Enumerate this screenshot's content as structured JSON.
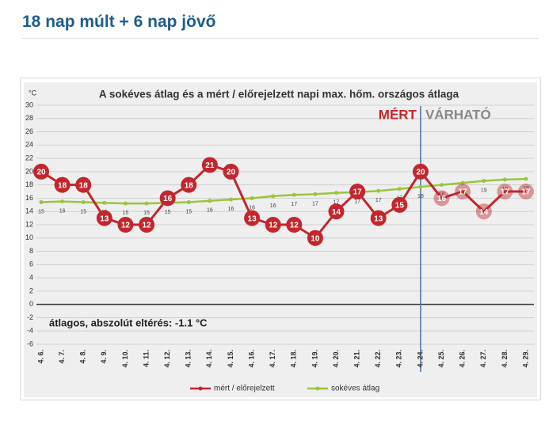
{
  "page_title": "18 nap múlt + 6 nap jövő",
  "chart_data": {
    "type": "line",
    "title": "A sokéves átlag és a mért / előrejelzett napi max. hőm. országos átlaga",
    "y_label": "°C",
    "annotations": {
      "deviation": "átlagos, abszolút eltérés: -1.1 °C",
      "measured": "MÉRT",
      "forecast": "VÁRHATÓ",
      "divider": "4. 24."
    },
    "categories": [
      "4. 6.",
      "4. 7.",
      "4. 8.",
      "4. 9.",
      "4. 10.",
      "4. 11.",
      "4. 12.",
      "4. 13.",
      "4. 14.",
      "4. 15.",
      "4. 16.",
      "4. 17.",
      "4. 18.",
      "4. 19.",
      "4. 20.",
      "4. 21.",
      "4. 22.",
      "4. 23.",
      "4. 24.",
      "4. 25.",
      "4. 26.",
      "4. 27.",
      "4. 28.",
      "4. 29."
    ],
    "series": [
      {
        "name": "mért / előrejelzett",
        "color": "#c1272d",
        "marker": "circle",
        "values": [
          20,
          18,
          18,
          13,
          12,
          12,
          16,
          18,
          21,
          20,
          13,
          12,
          12,
          10,
          14,
          17,
          13,
          15,
          20,
          16,
          17,
          14,
          17,
          17
        ]
      },
      {
        "name": "sokéves átlag",
        "color": "#9bc53d",
        "marker": "small",
        "values": [
          15.4,
          15.5,
          15.4,
          15.3,
          15.2,
          15.2,
          15.3,
          15.4,
          15.6,
          15.8,
          16.0,
          16.3,
          16.5,
          16.6,
          16.8,
          16.9,
          17.1,
          17.4,
          17.7,
          18.0,
          18.3,
          18.6,
          18.8,
          18.9
        ],
        "value_labels": [
          "15",
          "16",
          "15",
          "15",
          "15",
          "15",
          "15",
          "15",
          "16",
          "16",
          "16",
          "16",
          "17",
          "17",
          "17",
          "17",
          "17",
          "17",
          "18",
          "18",
          "18",
          "19",
          "19",
          "19"
        ]
      }
    ],
    "ylim": [
      -6,
      30
    ],
    "yticks": [
      -6,
      -4,
      -2,
      0,
      2,
      4,
      6,
      8,
      10,
      12,
      14,
      16,
      18,
      20,
      22,
      24,
      26,
      28,
      30
    ],
    "grid": true,
    "legend": "bottom"
  }
}
